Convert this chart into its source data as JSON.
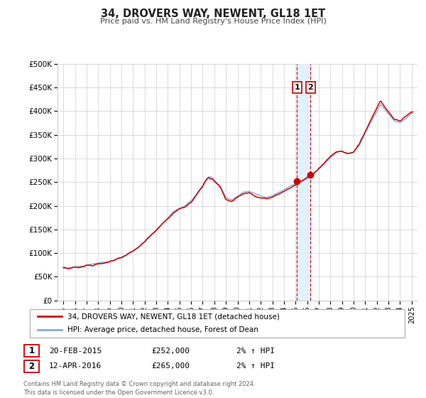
{
  "title": "34, DROVERS WAY, NEWENT, GL18 1ET",
  "subtitle": "Price paid vs. HM Land Registry's House Price Index (HPI)",
  "legend_line1": "34, DROVERS WAY, NEWENT, GL18 1ET (detached house)",
  "legend_line2": "HPI: Average price, detached house, Forest of Dean",
  "transaction1_date": "20-FEB-2015",
  "transaction1_price": "£252,000",
  "transaction1_hpi": "2% ↑ HPI",
  "transaction2_date": "12-APR-2016",
  "transaction2_price": "£265,000",
  "transaction2_hpi": "2% ↑ HPI",
  "footer_line1": "Contains HM Land Registry data © Crown copyright and database right 2024.",
  "footer_line2": "This data is licensed under the Open Government Licence v3.0.",
  "hpi_color": "#88aadd",
  "price_color": "#cc0000",
  "marker_color": "#cc0000",
  "dashed_line_color": "#cc0000",
  "shade_color": "#ddeeff",
  "transaction1_x": 2015.12,
  "transaction2_x": 2016.28,
  "transaction1_y": 252000,
  "transaction2_y": 265000,
  "ylim_min": 0,
  "ylim_max": 500000,
  "xlim_min": 1994.5,
  "xlim_max": 2025.5,
  "yticks": [
    0,
    50000,
    100000,
    150000,
    200000,
    250000,
    300000,
    350000,
    400000,
    450000,
    500000
  ],
  "ytick_labels": [
    "£0",
    "£50K",
    "£100K",
    "£150K",
    "£200K",
    "£250K",
    "£300K",
    "£350K",
    "£400K",
    "£450K",
    "£500K"
  ],
  "xticks": [
    1995,
    1996,
    1997,
    1998,
    1999,
    2000,
    2001,
    2002,
    2003,
    2004,
    2005,
    2006,
    2007,
    2008,
    2009,
    2010,
    2011,
    2012,
    2013,
    2014,
    2015,
    2016,
    2017,
    2018,
    2019,
    2020,
    2021,
    2022,
    2023,
    2024,
    2025
  ],
  "hpi_points": [
    [
      1995.0,
      68000
    ],
    [
      1995.5,
      69000
    ],
    [
      1996.0,
      71000
    ],
    [
      1996.5,
      72000
    ],
    [
      1997.0,
      74000
    ],
    [
      1997.5,
      76000
    ],
    [
      1998.0,
      78000
    ],
    [
      1998.5,
      80000
    ],
    [
      1999.0,
      82000
    ],
    [
      1999.5,
      85000
    ],
    [
      2000.0,
      90000
    ],
    [
      2000.5,
      96000
    ],
    [
      2001.0,
      103000
    ],
    [
      2001.5,
      112000
    ],
    [
      2002.0,
      122000
    ],
    [
      2002.5,
      135000
    ],
    [
      2003.0,
      148000
    ],
    [
      2003.5,
      162000
    ],
    [
      2004.0,
      175000
    ],
    [
      2004.5,
      188000
    ],
    [
      2005.0,
      196000
    ],
    [
      2005.5,
      200000
    ],
    [
      2006.0,
      210000
    ],
    [
      2006.5,
      225000
    ],
    [
      2007.0,
      242000
    ],
    [
      2007.3,
      255000
    ],
    [
      2007.5,
      260000
    ],
    [
      2007.8,
      258000
    ],
    [
      2008.0,
      252000
    ],
    [
      2008.5,
      240000
    ],
    [
      2009.0,
      218000
    ],
    [
      2009.5,
      212000
    ],
    [
      2010.0,
      220000
    ],
    [
      2010.5,
      228000
    ],
    [
      2011.0,
      230000
    ],
    [
      2011.5,
      225000
    ],
    [
      2012.0,
      220000
    ],
    [
      2012.5,
      218000
    ],
    [
      2013.0,
      222000
    ],
    [
      2013.5,
      228000
    ],
    [
      2014.0,
      235000
    ],
    [
      2014.5,
      242000
    ],
    [
      2015.0,
      248000
    ],
    [
      2015.5,
      254000
    ],
    [
      2016.0,
      260000
    ],
    [
      2016.5,
      268000
    ],
    [
      2017.0,
      280000
    ],
    [
      2017.5,
      292000
    ],
    [
      2018.0,
      305000
    ],
    [
      2018.5,
      315000
    ],
    [
      2019.0,
      318000
    ],
    [
      2019.5,
      312000
    ],
    [
      2020.0,
      315000
    ],
    [
      2020.5,
      330000
    ],
    [
      2021.0,
      355000
    ],
    [
      2021.5,
      378000
    ],
    [
      2022.0,
      400000
    ],
    [
      2022.3,
      415000
    ],
    [
      2022.6,
      408000
    ],
    [
      2023.0,
      395000
    ],
    [
      2023.5,
      380000
    ],
    [
      2024.0,
      375000
    ],
    [
      2024.5,
      385000
    ],
    [
      2025.0,
      395000
    ]
  ],
  "price_points": [
    [
      1995.0,
      70000
    ],
    [
      1995.5,
      68000
    ],
    [
      1996.0,
      72000
    ],
    [
      1996.5,
      71000
    ],
    [
      1997.0,
      76000
    ],
    [
      1997.5,
      75000
    ],
    [
      1998.0,
      80000
    ],
    [
      1998.5,
      82000
    ],
    [
      1999.0,
      83000
    ],
    [
      1999.5,
      88000
    ],
    [
      2000.0,
      92000
    ],
    [
      2000.5,
      98000
    ],
    [
      2001.0,
      106000
    ],
    [
      2001.5,
      115000
    ],
    [
      2002.0,
      125000
    ],
    [
      2002.5,
      138000
    ],
    [
      2003.0,
      152000
    ],
    [
      2003.5,
      165000
    ],
    [
      2004.0,
      178000
    ],
    [
      2004.5,
      190000
    ],
    [
      2005.0,
      198000
    ],
    [
      2005.5,
      202000
    ],
    [
      2006.0,
      212000
    ],
    [
      2006.5,
      228000
    ],
    [
      2007.0,
      245000
    ],
    [
      2007.3,
      258000
    ],
    [
      2007.5,
      262000
    ],
    [
      2007.8,
      260000
    ],
    [
      2008.0,
      255000
    ],
    [
      2008.5,
      242000
    ],
    [
      2009.0,
      215000
    ],
    [
      2009.5,
      210000
    ],
    [
      2010.0,
      218000
    ],
    [
      2010.5,
      225000
    ],
    [
      2011.0,
      228000
    ],
    [
      2011.5,
      222000
    ],
    [
      2012.0,
      218000
    ],
    [
      2012.5,
      216000
    ],
    [
      2013.0,
      220000
    ],
    [
      2013.5,
      226000
    ],
    [
      2014.0,
      233000
    ],
    [
      2014.5,
      240000
    ],
    [
      2015.0,
      247000
    ],
    [
      2015.1,
      252000
    ],
    [
      2015.5,
      256000
    ],
    [
      2016.0,
      262000
    ],
    [
      2016.3,
      265000
    ],
    [
      2016.5,
      270000
    ],
    [
      2017.0,
      283000
    ],
    [
      2017.5,
      295000
    ],
    [
      2018.0,
      308000
    ],
    [
      2018.5,
      318000
    ],
    [
      2019.0,
      320000
    ],
    [
      2019.5,
      315000
    ],
    [
      2020.0,
      318000
    ],
    [
      2020.5,
      333000
    ],
    [
      2021.0,
      358000
    ],
    [
      2021.5,
      382000
    ],
    [
      2022.0,
      405000
    ],
    [
      2022.3,
      420000
    ],
    [
      2022.6,
      410000
    ],
    [
      2023.0,
      398000
    ],
    [
      2023.5,
      382000
    ],
    [
      2024.0,
      378000
    ],
    [
      2024.5,
      388000
    ],
    [
      2025.0,
      398000
    ]
  ]
}
